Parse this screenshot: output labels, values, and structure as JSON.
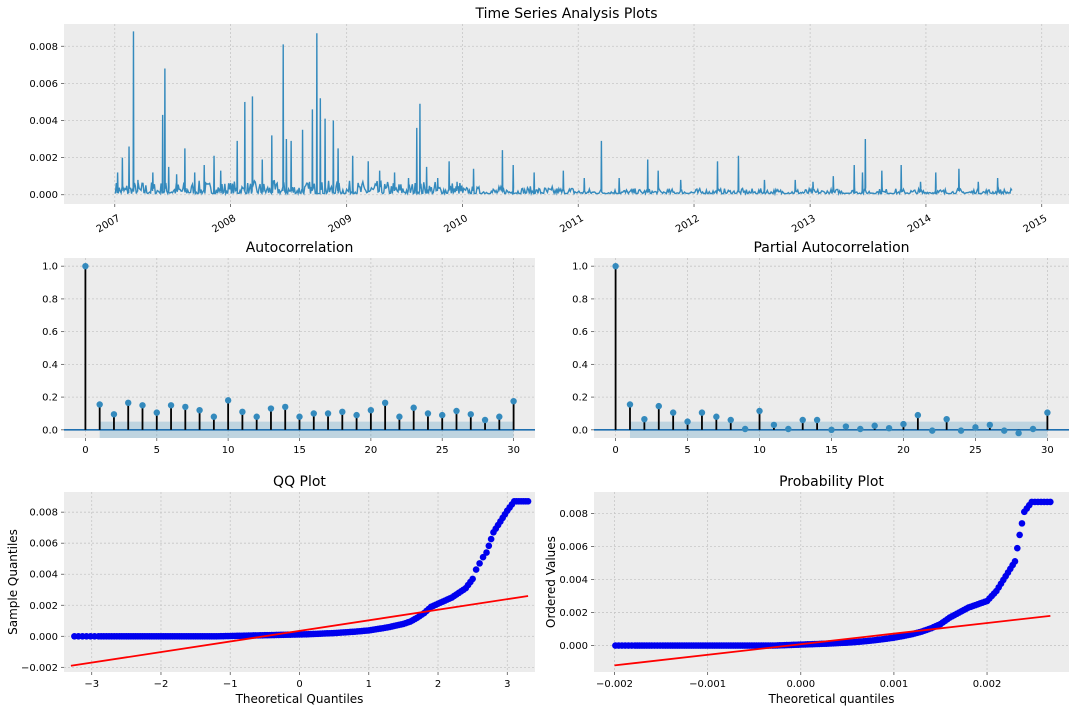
{
  "chart_data": [
    {
      "id": "ts",
      "type": "line",
      "title": "Time Series Analysis Plots",
      "xlabel": "",
      "ylabel": "",
      "ylim": [
        -0.0005,
        0.0092
      ],
      "xlim": [
        "2006-07-25",
        "2015-03-28"
      ],
      "yticks": [
        0,
        0.002,
        0.004,
        0.006,
        0.008
      ],
      "ytick_labels": [
        "0.000",
        "0.002",
        "0.004",
        "0.006",
        "0.008"
      ],
      "xtick_labels": [
        "2007",
        "2008",
        "2009",
        "2010",
        "2011",
        "2012",
        "2013",
        "2014",
        "2015"
      ],
      "x_start": "2007-01-03",
      "x_end": "2014-10-01",
      "baseline": 0.0002,
      "spikes": [
        [
          "2007-01-10",
          0.0012
        ],
        [
          "2007-01-25",
          0.002
        ],
        [
          "2007-02-15",
          0.0026
        ],
        [
          "2007-03-01",
          0.0088
        ],
        [
          "2007-03-15",
          0.0008
        ],
        [
          "2007-05-01",
          0.0012
        ],
        [
          "2007-06-01",
          0.0043
        ],
        [
          "2007-06-08",
          0.0068
        ],
        [
          "2007-06-20",
          0.0015
        ],
        [
          "2007-07-15",
          0.0011
        ],
        [
          "2007-08-10",
          0.0025
        ],
        [
          "2007-09-10",
          0.0012
        ],
        [
          "2007-10-10",
          0.0016
        ],
        [
          "2007-11-10",
          0.0021
        ],
        [
          "2007-12-01",
          0.0013
        ],
        [
          "2008-01-22",
          0.0029
        ],
        [
          "2008-02-15",
          0.005
        ],
        [
          "2008-03-10",
          0.0053
        ],
        [
          "2008-04-10",
          0.0019
        ],
        [
          "2008-05-10",
          0.0032
        ],
        [
          "2008-06-15",
          0.0081
        ],
        [
          "2008-06-25",
          0.003
        ],
        [
          "2008-07-10",
          0.0029
        ],
        [
          "2008-08-15",
          0.0035
        ],
        [
          "2008-09-15",
          0.0046
        ],
        [
          "2008-09-29",
          0.0087
        ],
        [
          "2008-10-10",
          0.0052
        ],
        [
          "2008-10-25",
          0.0041
        ],
        [
          "2008-11-20",
          0.004
        ],
        [
          "2008-12-05",
          0.0025
        ],
        [
          "2009-01-20",
          0.0021
        ],
        [
          "2009-03-10",
          0.0018
        ],
        [
          "2009-04-15",
          0.0013
        ],
        [
          "2009-06-01",
          0.0012
        ],
        [
          "2009-07-15",
          0.0009
        ],
        [
          "2009-08-10",
          0.0036
        ],
        [
          "2009-08-20",
          0.0049
        ],
        [
          "2009-09-10",
          0.0015
        ],
        [
          "2009-10-15",
          0.0009
        ],
        [
          "2009-11-20",
          0.0018
        ],
        [
          "2009-12-15",
          0.0007
        ],
        [
          "2010-02-05",
          0.0014
        ],
        [
          "2010-05-07",
          0.0024
        ],
        [
          "2010-06-10",
          0.0016
        ],
        [
          "2010-08-15",
          0.0012
        ],
        [
          "2010-11-15",
          0.0013
        ],
        [
          "2011-01-20",
          0.0009
        ],
        [
          "2011-03-15",
          0.0029
        ],
        [
          "2011-05-10",
          0.0009
        ],
        [
          "2011-08-08",
          0.0019
        ],
        [
          "2011-09-10",
          0.0013
        ],
        [
          "2011-11-20",
          0.0008
        ],
        [
          "2012-03-15",
          0.0018
        ],
        [
          "2012-05-20",
          0.0021
        ],
        [
          "2012-08-10",
          0.0008
        ],
        [
          "2012-11-15",
          0.0008
        ],
        [
          "2013-01-10",
          0.0007
        ],
        [
          "2013-03-15",
          0.001
        ],
        [
          "2013-05-20",
          0.0016
        ],
        [
          "2013-06-15",
          0.0012
        ],
        [
          "2013-06-24",
          0.003
        ],
        [
          "2013-08-15",
          0.0013
        ],
        [
          "2013-10-15",
          0.0016
        ],
        [
          "2013-12-15",
          0.0007
        ],
        [
          "2014-02-01",
          0.0012
        ],
        [
          "2014-04-15",
          0.0014
        ],
        [
          "2014-06-15",
          0.0007
        ],
        [
          "2014-08-15",
          0.0009
        ]
      ]
    },
    {
      "id": "acf",
      "type": "stem",
      "title": "Autocorrelation",
      "xlabel": "",
      "ylabel": "",
      "xlim": [
        -1.5,
        31.5
      ],
      "ylim": [
        -0.05,
        1.05
      ],
      "xticks": [
        0,
        5,
        10,
        15,
        20,
        25,
        30
      ],
      "yticks": [
        0,
        0.2,
        0.4,
        0.6,
        0.8,
        1.0
      ],
      "ytick_labels": [
        "0.0",
        "0.2",
        "0.4",
        "0.6",
        "0.8",
        "1.0"
      ],
      "lags": [
        0,
        1,
        2,
        3,
        4,
        5,
        6,
        7,
        8,
        9,
        10,
        11,
        12,
        13,
        14,
        15,
        16,
        17,
        18,
        19,
        20,
        21,
        22,
        23,
        24,
        25,
        26,
        27,
        28,
        29,
        30
      ],
      "values": [
        1.0,
        0.155,
        0.095,
        0.165,
        0.15,
        0.105,
        0.15,
        0.14,
        0.12,
        0.08,
        0.18,
        0.11,
        0.08,
        0.13,
        0.14,
        0.08,
        0.1,
        0.1,
        0.11,
        0.09,
        0.12,
        0.165,
        0.08,
        0.135,
        0.1,
        0.09,
        0.115,
        0.095,
        0.06,
        0.08,
        0.175
      ],
      "ci": 0.05
    },
    {
      "id": "pacf",
      "type": "stem",
      "title": "Partial Autocorrelation",
      "xlabel": "",
      "ylabel": "",
      "xlim": [
        -1.5,
        31.5
      ],
      "ylim": [
        -0.05,
        1.05
      ],
      "xticks": [
        0,
        5,
        10,
        15,
        20,
        25,
        30
      ],
      "yticks": [
        0,
        0.2,
        0.4,
        0.6,
        0.8,
        1.0
      ],
      "ytick_labels": [
        "0.0",
        "0.2",
        "0.4",
        "0.6",
        "0.8",
        "1.0"
      ],
      "lags": [
        0,
        1,
        2,
        3,
        4,
        5,
        6,
        7,
        8,
        9,
        10,
        11,
        12,
        13,
        14,
        15,
        16,
        17,
        18,
        19,
        20,
        21,
        22,
        23,
        24,
        25,
        26,
        27,
        28,
        29,
        30
      ],
      "values": [
        1.0,
        0.155,
        0.065,
        0.145,
        0.105,
        0.05,
        0.105,
        0.08,
        0.06,
        0.005,
        0.115,
        0.03,
        0.005,
        0.06,
        0.06,
        0.0,
        0.02,
        0.005,
        0.025,
        0.01,
        0.035,
        0.09,
        -0.005,
        0.065,
        -0.005,
        0.015,
        0.03,
        -0.005,
        -0.02,
        0.005,
        0.105
      ],
      "ci": 0.05
    },
    {
      "id": "qq",
      "type": "scatter",
      "title": "QQ Plot",
      "xlabel": "Theoretical Quantiles",
      "ylabel": "Sample Quantiles",
      "xlim": [
        -3.4,
        3.4
      ],
      "ylim": [
        -0.0023,
        0.0093
      ],
      "xticks": [
        -3,
        -2,
        -1,
        0,
        1,
        2,
        3
      ],
      "yticks": [
        -0.002,
        0,
        0.002,
        0.004,
        0.006,
        0.008
      ],
      "ytick_labels": [
        "−0.002",
        "0.000",
        "0.002",
        "0.004",
        "0.006",
        "0.008"
      ],
      "xtick_labels": [
        "−3",
        "−2",
        "−1",
        "0",
        "1",
        "2",
        "3"
      ],
      "points": [
        [
          -3.25,
          0.0
        ],
        [
          -2.9,
          0.0
        ],
        [
          -2.75,
          0.0
        ],
        [
          -2.6,
          0.0
        ],
        [
          -2.5,
          0.0
        ],
        [
          -2.4,
          0.0
        ],
        [
          -2.3,
          0.0
        ],
        [
          -2.2,
          0.0
        ],
        [
          -2.1,
          0.0
        ],
        [
          -2.0,
          0.0
        ],
        [
          -1.9,
          0.0
        ],
        [
          -1.8,
          0.0
        ],
        [
          -1.7,
          0.0
        ],
        [
          -1.6,
          0.0
        ],
        [
          -1.5,
          0.0
        ],
        [
          -1.4,
          0.0
        ],
        [
          -1.3,
          0.0
        ],
        [
          -1.2,
          0.0
        ],
        [
          -1.1,
          1e-05
        ],
        [
          -1.0,
          2e-05
        ],
        [
          -0.9,
          3e-05
        ],
        [
          -0.8,
          4e-05
        ],
        [
          -0.7,
          5e-05
        ],
        [
          -0.6,
          6e-05
        ],
        [
          -0.5,
          7e-05
        ],
        [
          -0.4,
          8e-05
        ],
        [
          -0.3,
          9e-05
        ],
        [
          -0.2,
          0.0001
        ],
        [
          -0.1,
          0.00011
        ],
        [
          0.0,
          0.00012
        ],
        [
          0.1,
          0.00013
        ],
        [
          0.2,
          0.00015
        ],
        [
          0.3,
          0.00017
        ],
        [
          0.4,
          0.00019
        ],
        [
          0.5,
          0.00021
        ],
        [
          0.6,
          0.00024
        ],
        [
          0.7,
          0.00027
        ],
        [
          0.8,
          0.0003
        ],
        [
          0.9,
          0.00034
        ],
        [
          1.0,
          0.00038
        ],
        [
          1.1,
          0.00045
        ],
        [
          1.2,
          0.00052
        ],
        [
          1.3,
          0.0006
        ],
        [
          1.4,
          0.0007
        ],
        [
          1.5,
          0.0008
        ],
        [
          1.6,
          0.00095
        ],
        [
          1.7,
          0.0012
        ],
        [
          1.8,
          0.0015
        ],
        [
          1.9,
          0.0019
        ],
        [
          2.0,
          0.0021
        ],
        [
          2.1,
          0.0023
        ],
        [
          2.2,
          0.0025
        ],
        [
          2.3,
          0.0028
        ],
        [
          2.4,
          0.0031
        ],
        [
          2.5,
          0.0037
        ],
        [
          2.55,
          0.0043
        ],
        [
          2.6,
          0.0047
        ],
        [
          2.65,
          0.0051
        ],
        [
          2.7,
          0.0054
        ],
        [
          2.8,
          0.0067
        ],
        [
          3.0,
          0.0081
        ],
        [
          3.1,
          0.0087
        ],
        [
          3.3,
          0.0087
        ]
      ],
      "line": [
        [
          -3.3,
          -0.0019
        ],
        [
          3.3,
          0.0026
        ]
      ]
    },
    {
      "id": "prob",
      "type": "scatter",
      "title": "Probability Plot",
      "xlabel": "Theoretical quantiles",
      "ylabel": "Ordered Values",
      "xlim": [
        -0.00222,
        0.00288
      ],
      "ylim": [
        -0.0016,
        0.0093
      ],
      "xticks": [
        -0.002,
        -0.001,
        0,
        0.001,
        0.002
      ],
      "xtick_labels": [
        "−0.002",
        "−0.001",
        "0.000",
        "0.001",
        "0.002"
      ],
      "yticks": [
        0,
        0.002,
        0.004,
        0.006,
        0.008
      ],
      "ytick_labels": [
        "0.000",
        "0.002",
        "0.004",
        "0.006",
        "0.008"
      ],
      "points": [
        [
          -0.00199,
          0.0
        ],
        [
          -0.00178,
          0.0
        ],
        [
          -0.00168,
          0.0
        ],
        [
          -0.0016,
          0.0
        ],
        [
          -0.00154,
          0.0
        ],
        [
          -0.00148,
          0.0
        ],
        [
          -0.0014,
          0.0
        ],
        [
          -0.0013,
          0.0
        ],
        [
          -0.0012,
          0.0
        ],
        [
          -0.0011,
          0.0
        ],
        [
          -0.001,
          0.0
        ],
        [
          -0.0009,
          0.0
        ],
        [
          -0.0008,
          0.0
        ],
        [
          -0.0007,
          0.0
        ],
        [
          -0.0006,
          0.0
        ],
        [
          -0.0005,
          0.0
        ],
        [
          -0.0004,
          0.0
        ],
        [
          -0.0003,
          0.0
        ],
        [
          -0.0002,
          2e-05
        ],
        [
          -0.0001,
          4e-05
        ],
        [
          0.0,
          6e-05
        ],
        [
          0.0001,
          8e-05
        ],
        [
          0.0002,
          0.0001
        ],
        [
          0.0003,
          0.00012
        ],
        [
          0.0004,
          0.00015
        ],
        [
          0.0005,
          0.00018
        ],
        [
          0.0006,
          0.00022
        ],
        [
          0.0007,
          0.00027
        ],
        [
          0.0008,
          0.00033
        ],
        [
          0.0009,
          0.0004
        ],
        [
          0.001,
          0.00048
        ],
        [
          0.0011,
          0.00058
        ],
        [
          0.0012,
          0.0007
        ],
        [
          0.0013,
          0.00085
        ],
        [
          0.0014,
          0.00105
        ],
        [
          0.0015,
          0.0013
        ],
        [
          0.0016,
          0.0017
        ],
        [
          0.0017,
          0.002
        ],
        [
          0.0018,
          0.0023
        ],
        [
          0.0019,
          0.0025
        ],
        [
          0.002,
          0.0027
        ],
        [
          0.0021,
          0.0033
        ],
        [
          0.0022,
          0.0042
        ],
        [
          0.0023,
          0.0051
        ],
        [
          0.00235,
          0.0067
        ],
        [
          0.0024,
          0.0081
        ],
        [
          0.00248,
          0.0087
        ],
        [
          0.00268,
          0.0087
        ]
      ],
      "line": [
        [
          -0.002,
          -0.0012
        ],
        [
          0.00268,
          0.0018
        ]
      ]
    }
  ]
}
